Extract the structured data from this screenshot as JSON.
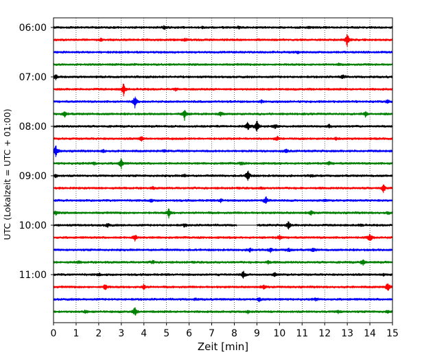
{
  "chart_data": {
    "type": "line",
    "title": "",
    "xlabel": "Zeit  [min]",
    "ylabel": "UTC (Lokalzeit = UTC + 01:00)",
    "xlim": [
      0,
      15
    ],
    "x_ticks": [
      "0",
      "1",
      "2",
      "3",
      "4",
      "5",
      "6",
      "7",
      "8",
      "9",
      "10",
      "11",
      "12",
      "13",
      "14",
      "15"
    ],
    "y_ticks": [
      "06:00",
      "07:00",
      "08:00",
      "09:00",
      "10:00",
      "11:00"
    ],
    "grid": "vertical dotted lines at each minute",
    "trace_interval_min": 15,
    "first_trace_start": "06:00",
    "colors": [
      "#000000",
      "#ff0000",
      "#0000ff",
      "#008000"
    ],
    "series": [
      {
        "start": "06:00",
        "color": "#000000",
        "events": [
          [
            4.9,
            0.2
          ],
          [
            6.6,
            0.15
          ],
          [
            8.2,
            0.15
          ],
          [
            11.3,
            0.15
          ]
        ]
      },
      {
        "start": "06:15",
        "color": "#ff0000",
        "events": [
          [
            2.1,
            0.15
          ],
          [
            5.8,
            0.25
          ],
          [
            13.0,
            1.0
          ]
        ]
      },
      {
        "start": "06:30",
        "color": "#0000ff",
        "events": [
          [
            10.8,
            0.12
          ]
        ]
      },
      {
        "start": "06:45",
        "color": "#008000",
        "events": [
          [
            12.6,
            0.12
          ]
        ]
      },
      {
        "start": "07:00",
        "color": "#000000",
        "events": [
          [
            0.1,
            0.35
          ],
          [
            12.8,
            0.3
          ]
        ]
      },
      {
        "start": "07:15",
        "color": "#ff0000",
        "events": [
          [
            3.1,
            0.95
          ],
          [
            5.4,
            0.15
          ]
        ]
      },
      {
        "start": "07:30",
        "color": "#0000ff",
        "events": [
          [
            3.6,
            0.85
          ],
          [
            9.2,
            0.2
          ],
          [
            14.8,
            0.25
          ]
        ]
      },
      {
        "start": "07:45",
        "color": "#008000",
        "events": [
          [
            0.5,
            0.4
          ],
          [
            5.8,
            0.8
          ],
          [
            7.4,
            0.3
          ],
          [
            13.8,
            0.4
          ]
        ]
      },
      {
        "start": "08:00",
        "color": "#000000",
        "events": [
          [
            8.6,
            0.65
          ],
          [
            9.0,
            0.95
          ],
          [
            9.8,
            0.3
          ],
          [
            12.2,
            0.2
          ]
        ]
      },
      {
        "start": "08:15",
        "color": "#ff0000",
        "events": [
          [
            3.9,
            0.35
          ],
          [
            9.9,
            0.3
          ],
          [
            12.5,
            0.15
          ]
        ]
      },
      {
        "start": "08:30",
        "color": "#0000ff",
        "events": [
          [
            0.1,
            0.95
          ],
          [
            2.2,
            0.25
          ],
          [
            4.9,
            0.15
          ],
          [
            10.3,
            0.3
          ]
        ]
      },
      {
        "start": "08:45",
        "color": "#008000",
        "events": [
          [
            1.8,
            0.2
          ],
          [
            3.0,
            0.8
          ],
          [
            8.3,
            0.25
          ],
          [
            12.2,
            0.25
          ]
        ]
      },
      {
        "start": "09:00",
        "color": "#000000",
        "events": [
          [
            0.1,
            0.25
          ],
          [
            5.8,
            0.2
          ],
          [
            8.6,
            0.85
          ],
          [
            11.4,
            0.15
          ]
        ]
      },
      {
        "start": "09:15",
        "color": "#ff0000",
        "events": [
          [
            4.4,
            0.15
          ],
          [
            9.2,
            0.15
          ],
          [
            14.6,
            0.6
          ]
        ]
      },
      {
        "start": "09:30",
        "color": "#0000ff",
        "events": [
          [
            4.3,
            0.2
          ],
          [
            7.4,
            0.3
          ],
          [
            9.4,
            0.55
          ],
          [
            12.0,
            0.15
          ]
        ]
      },
      {
        "start": "09:45",
        "color": "#008000",
        "events": [
          [
            0.1,
            0.3
          ],
          [
            5.1,
            0.65
          ],
          [
            11.4,
            0.3
          ],
          [
            14.8,
            0.2
          ]
        ]
      },
      {
        "start": "10:00",
        "color": "#000000",
        "events": [
          [
            2.4,
            0.3
          ],
          [
            5.8,
            0.2
          ],
          [
            10.4,
            0.6
          ],
          [
            13.6,
            0.2
          ]
        ],
        "gap": [
          8.1,
          9.0
        ]
      },
      {
        "start": "10:15",
        "color": "#ff0000",
        "events": [
          [
            3.6,
            0.5
          ],
          [
            10.0,
            0.35
          ],
          [
            14.0,
            0.75
          ]
        ]
      },
      {
        "start": "10:30",
        "color": "#0000ff",
        "events": [
          [
            8.7,
            0.3
          ],
          [
            9.6,
            0.3
          ],
          [
            10.4,
            0.3
          ],
          [
            11.5,
            0.3
          ]
        ]
      },
      {
        "start": "10:45",
        "color": "#008000",
        "events": [
          [
            1.1,
            0.15
          ],
          [
            4.4,
            0.25
          ],
          [
            9.5,
            0.25
          ],
          [
            13.7,
            0.45
          ]
        ]
      },
      {
        "start": "11:00",
        "color": "#000000",
        "events": [
          [
            2.0,
            0.2
          ],
          [
            8.4,
            0.6
          ],
          [
            9.8,
            0.3
          ],
          [
            14.6,
            0.2
          ]
        ]
      },
      {
        "start": "11:15",
        "color": "#ff0000",
        "events": [
          [
            2.3,
            0.5
          ],
          [
            4.0,
            0.4
          ],
          [
            9.3,
            0.25
          ],
          [
            14.8,
            0.75
          ]
        ]
      },
      {
        "start": "11:30",
        "color": "#0000ff",
        "events": [
          [
            6.3,
            0.12
          ],
          [
            9.1,
            0.25
          ],
          [
            11.6,
            0.2
          ]
        ]
      },
      {
        "start": "11:45",
        "color": "#008000",
        "events": [
          [
            1.4,
            0.2
          ],
          [
            3.6,
            0.65
          ],
          [
            8.6,
            0.2
          ],
          [
            12.6,
            0.25
          ],
          [
            14.8,
            0.2
          ]
        ]
      }
    ]
  }
}
